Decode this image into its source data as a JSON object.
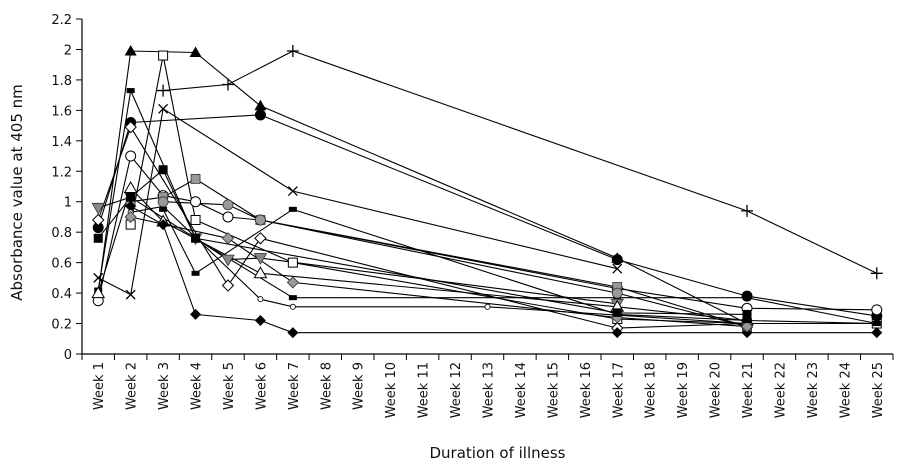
{
  "chart_data": {
    "type": "line",
    "title": "",
    "xlabel": "Duration of illness",
    "ylabel": "Absorbance value at 405 nm",
    "ylim": [
      0,
      2.2
    ],
    "yticks": [
      0,
      0.2,
      0.4,
      0.6,
      0.8,
      1,
      1.2,
      1.4,
      1.6,
      1.8,
      2,
      2.2
    ],
    "ytick_labels": [
      "0",
      "0.2",
      "0.4",
      "0.6",
      "0.8",
      "1",
      "1.2",
      "1.4",
      "1.6",
      "1.8",
      "2",
      "2.2"
    ],
    "categories": [
      "Week 1",
      "Week 2",
      "Week 3",
      "Week 4",
      "Week 5",
      "Week 6",
      "Week 7",
      "Week 8",
      "Week 9",
      "Week 10",
      "Week 11",
      "Week 12",
      "Week 13",
      "Week 14",
      "Week 15",
      "Week 16",
      "Week 17",
      "Week 18",
      "Week 19",
      "Week 20",
      "Week 21",
      "Week 22",
      "Week 23",
      "Week 24",
      "Week 25"
    ],
    "grid": false,
    "legend": "none",
    "series": [
      {
        "marker": "triangle-filled",
        "points": [
          [
            1,
            0.4
          ],
          [
            2,
            1.99
          ],
          [
            4,
            1.98
          ],
          [
            6,
            1.63
          ],
          [
            17,
            0.63
          ],
          [
            21,
            0.2
          ]
        ]
      },
      {
        "marker": "plus",
        "points": [
          [
            3,
            1.73
          ],
          [
            5,
            1.77
          ],
          [
            7,
            1.99
          ],
          [
            21,
            0.94
          ],
          [
            25,
            0.53
          ]
        ]
      },
      {
        "marker": "square-open",
        "points": [
          [
            2,
            0.85
          ],
          [
            3,
            1.96
          ],
          [
            4,
            0.88
          ],
          [
            7,
            0.6
          ],
          [
            17,
            0.23
          ],
          [
            21,
            0.2
          ],
          [
            25,
            0.2
          ]
        ]
      },
      {
        "marker": "circle-filled",
        "points": [
          [
            1,
            0.83
          ],
          [
            2,
            1.52
          ],
          [
            6,
            1.57
          ],
          [
            17,
            0.62
          ],
          [
            21,
            0.38
          ],
          [
            25,
            0.25
          ]
        ]
      },
      {
        "marker": "x",
        "points": [
          [
            1,
            0.5
          ],
          [
            2,
            0.39
          ],
          [
            3,
            1.61
          ],
          [
            7,
            1.07
          ],
          [
            17,
            0.56
          ]
        ]
      },
      {
        "marker": "dash-filled",
        "points": [
          [
            1,
            0.42
          ],
          [
            2,
            1.73
          ],
          [
            4,
            0.76
          ],
          [
            7,
            0.37
          ],
          [
            17,
            0.37
          ],
          [
            21,
            0.37
          ],
          [
            25,
            0.2
          ]
        ]
      },
      {
        "marker": "diamond-open",
        "points": [
          [
            1,
            0.88
          ],
          [
            2,
            1.49
          ],
          [
            5,
            0.45
          ],
          [
            6,
            0.76
          ],
          [
            17,
            0.17
          ],
          [
            21,
            0.2
          ]
        ]
      },
      {
        "marker": "circle-open",
        "points": [
          [
            1,
            0.35
          ],
          [
            2,
            1.3
          ],
          [
            3,
            1.04
          ],
          [
            4,
            1.0
          ],
          [
            5,
            0.9
          ],
          [
            6,
            0.88
          ],
          [
            17,
            0.43
          ],
          [
            21,
            0.3
          ],
          [
            25,
            0.29
          ]
        ]
      },
      {
        "marker": "square-grey",
        "points": [
          [
            2,
            1.0
          ],
          [
            3,
            1.03
          ],
          [
            4,
            1.15
          ],
          [
            6,
            0.88
          ],
          [
            17,
            0.44
          ],
          [
            21,
            0.18
          ]
        ]
      },
      {
        "marker": "triangle-grey",
        "points": [
          [
            1,
            0.96
          ],
          [
            2,
            1.03
          ],
          [
            4,
            0.76
          ],
          [
            5,
            0.62
          ],
          [
            6,
            0.63
          ],
          [
            17,
            0.33
          ]
        ]
      },
      {
        "marker": "triangle-open",
        "points": [
          [
            1,
            0.4
          ],
          [
            2,
            1.09
          ],
          [
            3,
            0.87
          ],
          [
            6,
            0.53
          ],
          [
            17,
            0.31
          ],
          [
            21,
            0.22
          ]
        ]
      },
      {
        "marker": "square-filled",
        "points": [
          [
            1,
            0.76
          ],
          [
            2,
            1.03
          ],
          [
            3,
            1.21
          ],
          [
            4,
            0.76
          ],
          [
            17,
            0.27
          ],
          [
            21,
            0.26
          ]
        ]
      },
      {
        "marker": "diamond-filled",
        "points": [
          [
            2,
            0.97
          ],
          [
            3,
            0.85
          ],
          [
            4,
            0.26
          ],
          [
            6,
            0.22
          ],
          [
            7,
            0.14
          ],
          [
            17,
            0.14
          ],
          [
            21,
            0.14
          ],
          [
            25,
            0.14
          ]
        ]
      },
      {
        "marker": "circle-small",
        "points": [
          [
            2,
            0.93
          ],
          [
            3,
            0.97
          ],
          [
            6,
            0.36
          ],
          [
            7,
            0.31
          ],
          [
            13,
            0.31
          ],
          [
            21,
            0.2
          ]
        ]
      },
      {
        "marker": "circle-grey",
        "points": [
          [
            3,
            1.0
          ],
          [
            5,
            0.98
          ],
          [
            6,
            0.88
          ],
          [
            17,
            0.4
          ],
          [
            21,
            0.18
          ]
        ]
      },
      {
        "marker": "diamond-grey",
        "points": [
          [
            2,
            0.9
          ],
          [
            5,
            0.76
          ],
          [
            7,
            0.47
          ],
          [
            17,
            0.24
          ],
          [
            21,
            0.18
          ]
        ]
      },
      {
        "marker": "dash-filled",
        "points": [
          [
            3,
            0.95
          ],
          [
            4,
            0.53
          ],
          [
            7,
            0.95
          ],
          [
            17,
            0.26
          ],
          [
            21,
            0.22
          ],
          [
            25,
            0.2
          ]
        ]
      }
    ]
  }
}
